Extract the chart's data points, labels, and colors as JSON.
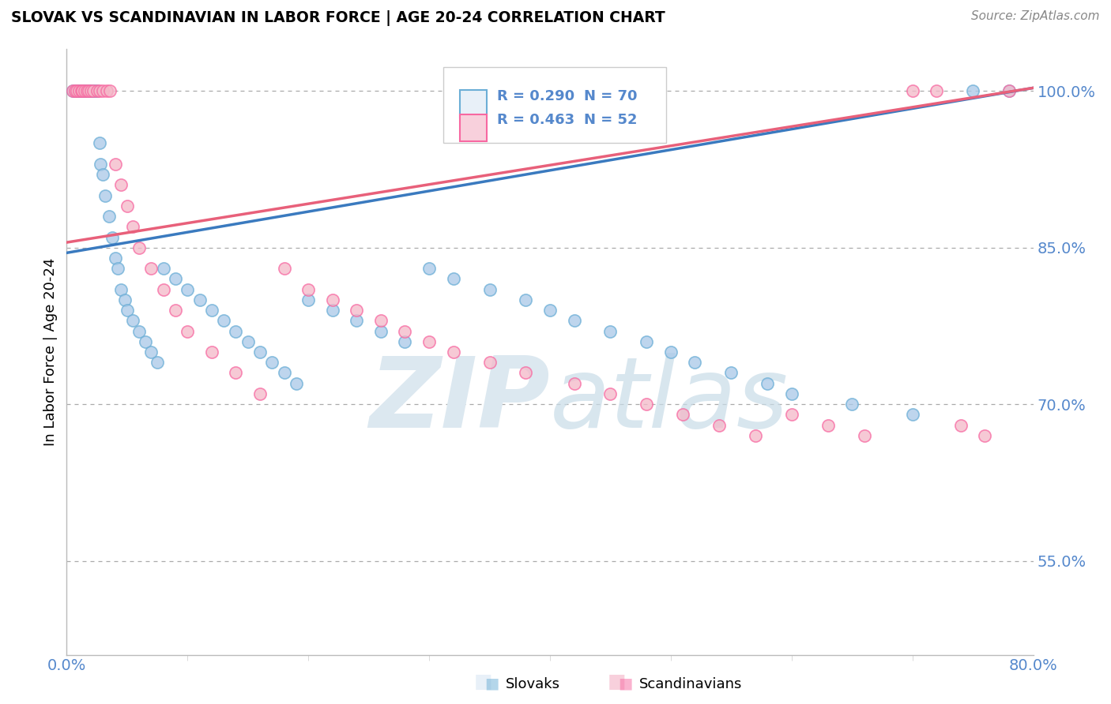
{
  "title": "SLOVAK VS SCANDINAVIAN IN LABOR FORCE | AGE 20-24 CORRELATION CHART",
  "source_text": "Source: ZipAtlas.com",
  "ylabel": "In Labor Force | Age 20-24",
  "xlim": [
    0.0,
    0.8
  ],
  "ylim": [
    0.46,
    1.04
  ],
  "ytick_right_values": [
    0.55,
    0.7,
    0.85,
    1.0
  ],
  "ytick_right_labels": [
    "55.0%",
    "70.0%",
    "85.0%",
    "100.0%"
  ],
  "r_slovak": 0.29,
  "n_slovak": 70,
  "r_scand": 0.463,
  "n_scand": 52,
  "slovak_color": "#a8c8e8",
  "scand_color": "#f4b8c8",
  "slovak_edge_color": "#6baed6",
  "scand_edge_color": "#f768a1",
  "slovak_line_color": "#3a7abf",
  "scand_line_color": "#e8607a",
  "background_color": "#ffffff",
  "watermark_color": "#dce8f0",
  "tick_color": "#5588cc",
  "legend_box_color": "#e8f0f8",
  "sk_line_y0": 0.845,
  "sk_line_y1": 1.003,
  "sc_line_y0": 0.855,
  "sc_line_y1": 1.003,
  "slovak_x": [
    0.005,
    0.007,
    0.008,
    0.009,
    0.01,
    0.01,
    0.011,
    0.012,
    0.013,
    0.014,
    0.015,
    0.016,
    0.017,
    0.018,
    0.019,
    0.02,
    0.021,
    0.022,
    0.023,
    0.025,
    0.027,
    0.028,
    0.03,
    0.032,
    0.035,
    0.038,
    0.04,
    0.042,
    0.045,
    0.048,
    0.05,
    0.055,
    0.06,
    0.065,
    0.07,
    0.075,
    0.08,
    0.09,
    0.1,
    0.11,
    0.12,
    0.13,
    0.14,
    0.15,
    0.16,
    0.17,
    0.18,
    0.19,
    0.2,
    0.22,
    0.24,
    0.26,
    0.28,
    0.3,
    0.32,
    0.35,
    0.38,
    0.4,
    0.42,
    0.45,
    0.48,
    0.5,
    0.52,
    0.55,
    0.58,
    0.6,
    0.65,
    0.7,
    0.75,
    0.78
  ],
  "slovak_y": [
    1.0,
    1.0,
    1.0,
    1.0,
    1.0,
    1.0,
    1.0,
    1.0,
    1.0,
    1.0,
    1.0,
    1.0,
    1.0,
    1.0,
    1.0,
    1.0,
    1.0,
    1.0,
    1.0,
    1.0,
    0.95,
    0.93,
    0.92,
    0.9,
    0.88,
    0.86,
    0.84,
    0.83,
    0.81,
    0.8,
    0.79,
    0.78,
    0.77,
    0.76,
    0.75,
    0.74,
    0.83,
    0.82,
    0.81,
    0.8,
    0.79,
    0.78,
    0.77,
    0.76,
    0.75,
    0.74,
    0.73,
    0.72,
    0.8,
    0.79,
    0.78,
    0.77,
    0.76,
    0.83,
    0.82,
    0.81,
    0.8,
    0.79,
    0.78,
    0.77,
    0.76,
    0.75,
    0.74,
    0.73,
    0.72,
    0.71,
    0.7,
    0.69,
    1.0,
    1.0
  ],
  "scand_x": [
    0.005,
    0.007,
    0.008,
    0.01,
    0.012,
    0.013,
    0.015,
    0.017,
    0.018,
    0.02,
    0.022,
    0.025,
    0.027,
    0.03,
    0.033,
    0.036,
    0.04,
    0.045,
    0.05,
    0.055,
    0.06,
    0.07,
    0.08,
    0.09,
    0.1,
    0.12,
    0.14,
    0.16,
    0.18,
    0.2,
    0.22,
    0.24,
    0.26,
    0.28,
    0.3,
    0.32,
    0.35,
    0.38,
    0.42,
    0.45,
    0.48,
    0.51,
    0.54,
    0.57,
    0.6,
    0.63,
    0.66,
    0.7,
    0.72,
    0.74,
    0.76,
    0.78
  ],
  "scand_y": [
    1.0,
    1.0,
    1.0,
    1.0,
    1.0,
    1.0,
    1.0,
    1.0,
    1.0,
    1.0,
    1.0,
    1.0,
    1.0,
    1.0,
    1.0,
    1.0,
    0.93,
    0.91,
    0.89,
    0.87,
    0.85,
    0.83,
    0.81,
    0.79,
    0.77,
    0.75,
    0.73,
    0.71,
    0.83,
    0.81,
    0.8,
    0.79,
    0.78,
    0.77,
    0.76,
    0.75,
    0.74,
    0.73,
    0.72,
    0.71,
    0.7,
    0.69,
    0.68,
    0.67,
    0.69,
    0.68,
    0.67,
    1.0,
    1.0,
    0.68,
    0.67,
    1.0
  ]
}
